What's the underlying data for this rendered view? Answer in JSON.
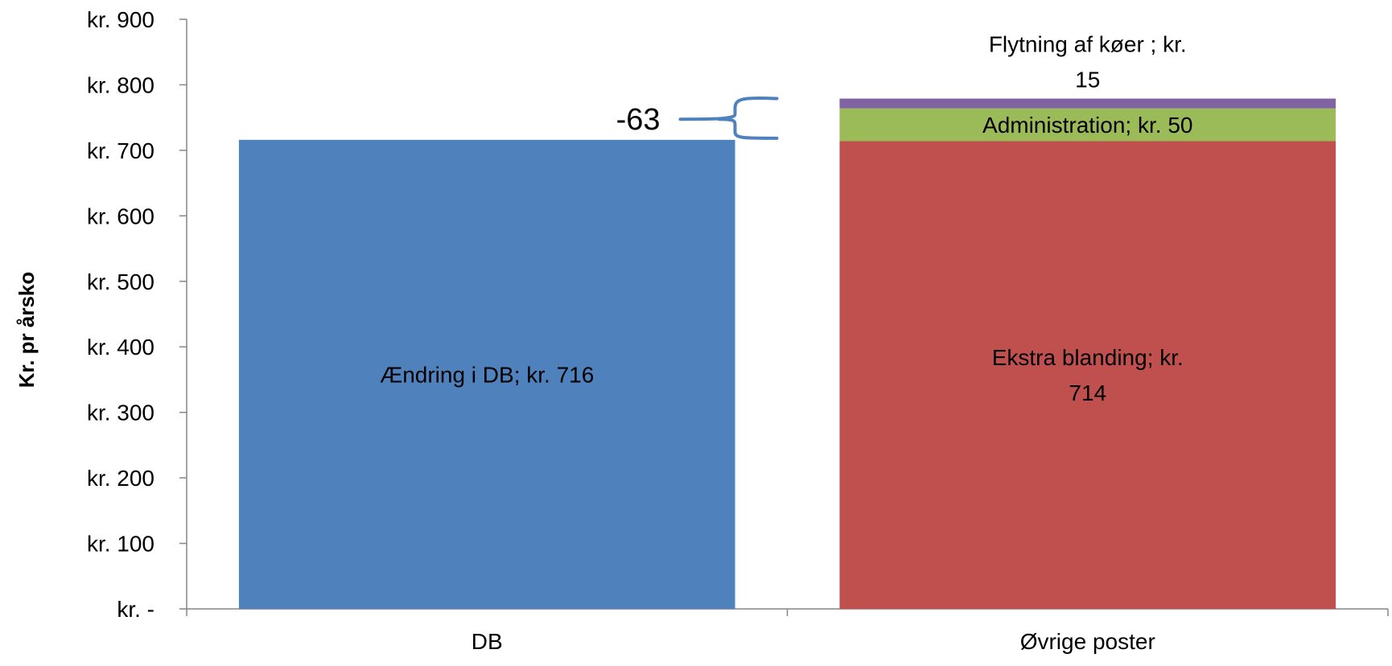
{
  "chart_data": {
    "type": "bar",
    "stacked": true,
    "categories": [
      "DB",
      "Øvrige poster"
    ],
    "ylabel": "Kr. pr årsko",
    "xlabel": "",
    "ylim": [
      0,
      900
    ],
    "grid": false,
    "legend": "none",
    "yticks": [
      {
        "value": 0,
        "label": "kr. -"
      },
      {
        "value": 100,
        "label": "kr. 100"
      },
      {
        "value": 200,
        "label": "kr. 200"
      },
      {
        "value": 300,
        "label": "kr. 300"
      },
      {
        "value": 400,
        "label": "kr. 400"
      },
      {
        "value": 500,
        "label": "kr. 500"
      },
      {
        "value": 600,
        "label": "kr. 600"
      },
      {
        "value": 700,
        "label": "kr. 700"
      },
      {
        "value": 800,
        "label": "kr. 800"
      },
      {
        "value": 900,
        "label": "kr. 900"
      }
    ],
    "bars": [
      {
        "category": "DB",
        "segments": [
          {
            "name": "Ændring i DB",
            "value": 716,
            "color": "#4F81BD",
            "label_lines": [
              "Ændring i DB;  kr. 716"
            ]
          }
        ]
      },
      {
        "category": "Øvrige poster",
        "segments": [
          {
            "name": "Ekstra blanding",
            "value": 714,
            "color": "#C0504D",
            "label_lines": [
              "Ekstra blanding;  kr.",
              "714"
            ]
          },
          {
            "name": "Administration",
            "value": 50,
            "color": "#9BBB59",
            "label_lines": [
              "Administration;  kr. 50"
            ]
          },
          {
            "name": "Flytning af køer",
            "value": 15,
            "color": "#8064A2",
            "label_lines": [
              "Flytning af køer ;  kr.",
              "15"
            ]
          }
        ]
      }
    ],
    "annotations": [
      {
        "text": "-63",
        "from": 716,
        "to": 779
      }
    ]
  }
}
